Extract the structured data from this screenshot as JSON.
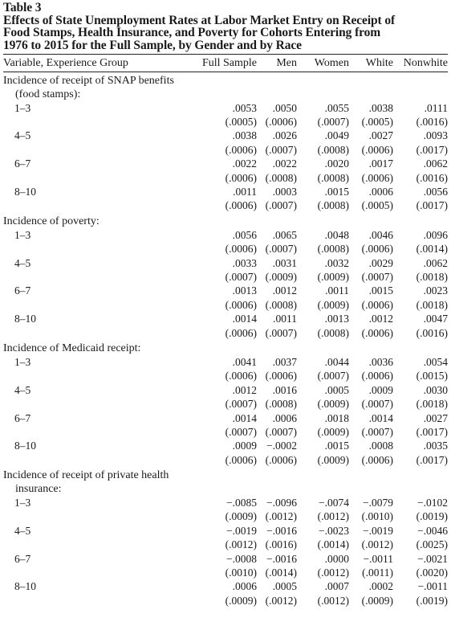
{
  "table": {
    "label": "Table 3",
    "title_lines": [
      "Effects of State Unemployment Rates at Labor Market Entry on Receipt of",
      "Food Stamps, Health Insurance, and Poverty for Cohorts Entering from",
      "1976 to 2015 for the Full Sample, by Gender and by Race"
    ],
    "columns": [
      "Variable, Experience Group",
      "Full Sample",
      "Men",
      "Women",
      "White",
      "Nonwhite"
    ],
    "sections": [
      {
        "title_lines": [
          "Incidence of receipt of SNAP benefits",
          "(food stamps):"
        ],
        "rows": [
          {
            "group": "1–3",
            "coef": [
              ".0053",
              ".0050",
              ".0055",
              ".0038",
              ".0111"
            ],
            "se": [
              "(.0005)",
              "(.0006)",
              "(.0007)",
              "(.0005)",
              "(.0016)"
            ]
          },
          {
            "group": "4–5",
            "coef": [
              ".0038",
              ".0026",
              ".0049",
              ".0027",
              ".0093"
            ],
            "se": [
              "(.0006)",
              "(.0007)",
              "(.0008)",
              "(.0006)",
              "(.0017)"
            ]
          },
          {
            "group": "6–7",
            "coef": [
              ".0022",
              ".0022",
              ".0020",
              ".0017",
              ".0062"
            ],
            "se": [
              "(.0006)",
              "(.0008)",
              "(.0008)",
              "(.0006)",
              "(.0016)"
            ]
          },
          {
            "group": "8–10",
            "coef": [
              ".0011",
              ".0003",
              ".0015",
              ".0006",
              ".0056"
            ],
            "se": [
              "(.0006)",
              "(.0007)",
              "(.0008)",
              "(.0005)",
              "(.0017)"
            ]
          }
        ]
      },
      {
        "title_lines": [
          "Incidence of poverty:"
        ],
        "rows": [
          {
            "group": "1–3",
            "coef": [
              ".0056",
              ".0065",
              ".0048",
              ".0046",
              ".0096"
            ],
            "se": [
              "(.0006)",
              "(.0007)",
              "(.0008)",
              "(.0006)",
              "(.0014)"
            ]
          },
          {
            "group": "4–5",
            "coef": [
              ".0033",
              ".0031",
              ".0032",
              ".0029",
              ".0062"
            ],
            "se": [
              "(.0007)",
              "(.0009)",
              "(.0009)",
              "(.0007)",
              "(.0018)"
            ]
          },
          {
            "group": "6–7",
            "coef": [
              ".0013",
              ".0012",
              ".0011",
              ".0015",
              ".0023"
            ],
            "se": [
              "(.0006)",
              "(.0008)",
              "(.0009)",
              "(.0006)",
              "(.0018)"
            ]
          },
          {
            "group": "8–10",
            "coef": [
              ".0014",
              ".0011",
              ".0013",
              ".0012",
              ".0047"
            ],
            "se": [
              "(.0006)",
              "(.0007)",
              "(.0008)",
              "(.0006)",
              "(.0016)"
            ]
          }
        ]
      },
      {
        "title_lines": [
          "Incidence of Medicaid receipt:"
        ],
        "rows": [
          {
            "group": "1–3",
            "coef": [
              ".0041",
              ".0037",
              ".0044",
              ".0036",
              ".0054"
            ],
            "se": [
              "(.0006)",
              "(.0006)",
              "(.0007)",
              "(.0006)",
              "(.0015)"
            ]
          },
          {
            "group": "4–5",
            "coef": [
              ".0012",
              ".0016",
              ".0005",
              ".0009",
              ".0030"
            ],
            "se": [
              "(.0007)",
              "(.0008)",
              "(.0009)",
              "(.0007)",
              "(.0018)"
            ]
          },
          {
            "group": "6–7",
            "coef": [
              ".0014",
              ".0006",
              ".0018",
              ".0014",
              ".0027"
            ],
            "se": [
              "(.0007)",
              "(.0007)",
              "(.0009)",
              "(.0007)",
              "(.0017)"
            ]
          },
          {
            "group": "8–10",
            "coef": [
              ".0009",
              "−.0002",
              ".0015",
              ".0008",
              ".0035"
            ],
            "se": [
              "(.0006)",
              "(.0006)",
              "(.0009)",
              "(.0006)",
              "(.0017)"
            ]
          }
        ]
      },
      {
        "title_lines": [
          "Incidence of receipt of private health",
          "insurance:"
        ],
        "rows": [
          {
            "group": "1–3",
            "coef": [
              "−.0085",
              "−.0096",
              "−.0074",
              "−.0079",
              "−.0102"
            ],
            "se": [
              "(.0009)",
              "(.0012)",
              "(.0012)",
              "(.0010)",
              "(.0019)"
            ]
          },
          {
            "group": "4–5",
            "coef": [
              "−.0019",
              "−.0016",
              "−.0023",
              "−.0019",
              "−.0046"
            ],
            "se": [
              "(.0012)",
              "(.0016)",
              "(.0014)",
              "(.0012)",
              "(.0025)"
            ]
          },
          {
            "group": "6–7",
            "coef": [
              "−.0008",
              "−.0016",
              ".0000",
              "−.0011",
              "−.0021"
            ],
            "se": [
              "(.0010)",
              "(.0014)",
              "(.0012)",
              "(.0011)",
              "(.0020)"
            ]
          },
          {
            "group": "8–10",
            "coef": [
              ".0006",
              ".0005",
              ".0007",
              ".0002",
              "−.0011"
            ],
            "se": [
              "(.0009)",
              "(.0012)",
              "(.0012)",
              "(.0009)",
              "(.0019)"
            ]
          }
        ]
      }
    ]
  }
}
